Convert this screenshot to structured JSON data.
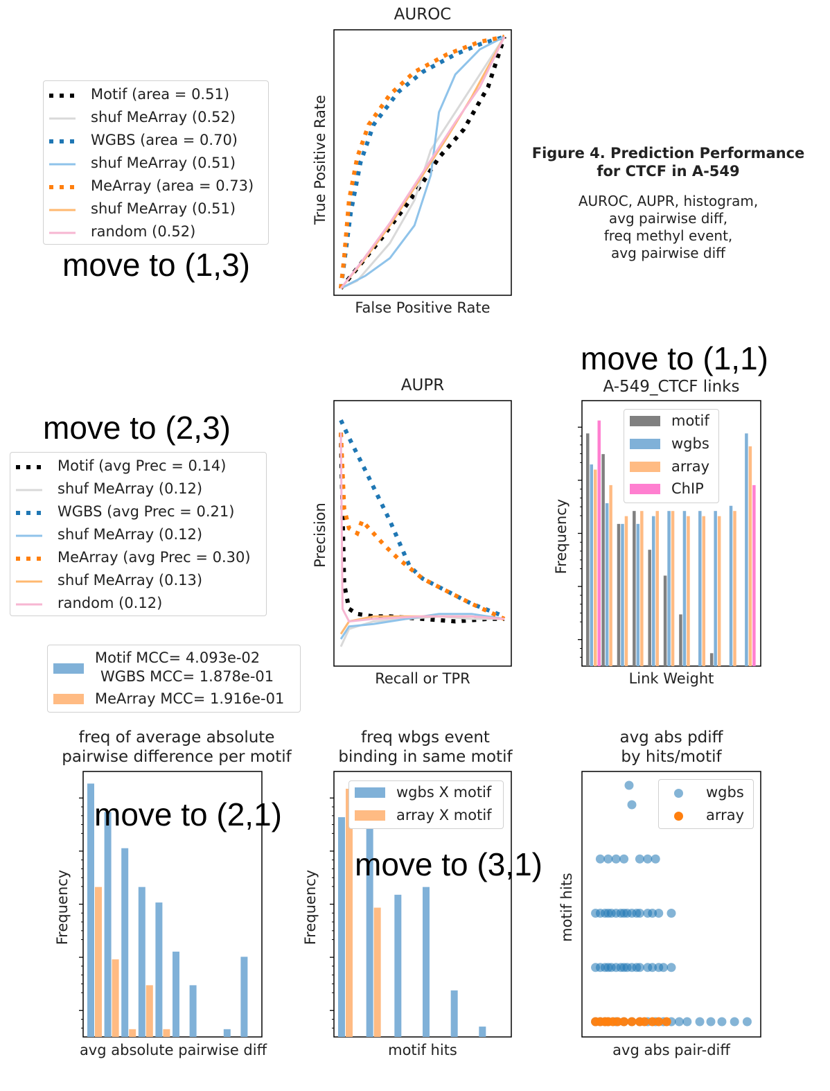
{
  "figure": {
    "title": "Figure 4. Prediction Performance",
    "title2": "for CTCF in A-549",
    "sub_lines": [
      "AUROC, AUPR, histogram,",
      "avg pairwise diff,",
      "freq methyl event,",
      "avg pairwise diff"
    ]
  },
  "notes": {
    "n13": "move to (1,3)",
    "n11": "move to (1,1)",
    "n23": "move to (2,3)",
    "n21": "move to (2,1)",
    "n31": "move to (3,1)"
  },
  "colors": {
    "black": "#000000",
    "blue": "#1f77b4",
    "lightblue": "#8fc3ea",
    "orange": "#ff7f0e",
    "lightorange": "#ffb870",
    "grey": "#d9d9d9",
    "pink": "#f7b6d2",
    "hist_blue": "#80b1d8",
    "hist_orange": "#ffbb83",
    "hist_grey": "#808080",
    "hist_pink": "#ff7fd0"
  },
  "legends": {
    "auroc": [
      "Motif (area = 0.51)",
      "shuf MeArray (0.52)",
      "WGBS (area = 0.70)",
      "shuf MeArray (0.51)",
      "MeArray (area = 0.73)",
      "shuf MeArray (0.51)",
      "random (0.52)"
    ],
    "aupr": [
      "Motif (avg Prec = 0.14)",
      "shuf MeArray (0.12)",
      "WGBS (avg Prec = 0.21)",
      "shuf MeArray (0.12)",
      "MeArray (avg Prec = 0.30)",
      "shuf MeArray (0.13)",
      "random (0.12)"
    ],
    "mcc": [
      "Motif MCC= 4.093e-02",
      "WGBS MCC= 1.878e-01",
      "MeArray MCC= 1.916e-01"
    ]
  },
  "chart_data": [
    {
      "id": "auroc",
      "type": "line",
      "title": "AUROC",
      "xlabel": "False Positive Rate",
      "ylabel": "True Positive Rate",
      "xlim": [
        0,
        1
      ],
      "ylim": [
        0,
        1
      ],
      "series": [
        {
          "name": "Motif (area = 0.51)",
          "color": "#000000",
          "dash": "dotted",
          "x": [
            0,
            0.1,
            0.25,
            0.4,
            0.5,
            0.6,
            0.75,
            0.9,
            1
          ],
          "y": [
            0,
            0.08,
            0.2,
            0.33,
            0.42,
            0.52,
            0.63,
            0.8,
            1
          ]
        },
        {
          "name": "shuf MeArray (0.52)",
          "color": "#d9d9d9",
          "dash": "solid",
          "x": [
            0,
            0.1,
            0.3,
            0.45,
            0.55,
            0.7,
            0.85,
            1
          ],
          "y": [
            0,
            0.03,
            0.18,
            0.35,
            0.55,
            0.7,
            0.85,
            1
          ]
        },
        {
          "name": "WGBS (area = 0.70)",
          "color": "#1f77b4",
          "dash": "dotted",
          "x": [
            0,
            0.02,
            0.06,
            0.12,
            0.2,
            0.35,
            0.5,
            0.7,
            0.85,
            1
          ],
          "y": [
            0,
            0.1,
            0.3,
            0.5,
            0.65,
            0.78,
            0.86,
            0.93,
            0.97,
            1
          ]
        },
        {
          "name": "shuf MeArray (0.51)",
          "color": "#8fc3ea",
          "dash": "solid",
          "x": [
            0,
            0.15,
            0.3,
            0.45,
            0.55,
            0.6,
            0.7,
            0.85,
            1
          ],
          "y": [
            0,
            0.05,
            0.12,
            0.25,
            0.45,
            0.7,
            0.85,
            0.95,
            1
          ]
        },
        {
          "name": "MeArray (area = 0.73)",
          "color": "#ff7f0e",
          "dash": "dotted",
          "x": [
            0,
            0.02,
            0.05,
            0.1,
            0.17,
            0.3,
            0.45,
            0.65,
            0.85,
            1
          ],
          "y": [
            0,
            0.12,
            0.35,
            0.52,
            0.65,
            0.77,
            0.86,
            0.93,
            0.98,
            1
          ]
        },
        {
          "name": "shuf MeArray (0.51)",
          "color": "#ffb870",
          "dash": "solid",
          "x": [
            0,
            0.15,
            0.3,
            0.5,
            0.65,
            0.8,
            1
          ],
          "y": [
            0,
            0.12,
            0.25,
            0.45,
            0.6,
            0.76,
            1
          ]
        },
        {
          "name": "random (0.52)",
          "color": "#f7b6d2",
          "dash": "solid",
          "x": [
            0,
            0.12,
            0.3,
            0.5,
            0.7,
            0.85,
            1
          ],
          "y": [
            0,
            0.1,
            0.26,
            0.46,
            0.66,
            0.8,
            1
          ]
        }
      ]
    },
    {
      "id": "aupr",
      "type": "line",
      "title": "AUPR",
      "xlabel": "Recall or TPR",
      "ylabel": "Precision",
      "xlim": [
        0,
        1
      ],
      "ylim": [
        0,
        1
      ],
      "series": [
        {
          "name": "Motif (avg Prec = 0.14)",
          "color": "#000000",
          "dash": "dotted",
          "x": [
            0,
            0.02,
            0.05,
            0.1,
            0.2,
            0.3,
            0.5,
            0.7,
            0.9,
            1
          ],
          "y": [
            0.9,
            0.3,
            0.2,
            0.18,
            0.17,
            0.17,
            0.16,
            0.15,
            0.16,
            0.16
          ]
        },
        {
          "name": "shuf MeArray (0.12)",
          "color": "#d9d9d9",
          "dash": "solid",
          "x": [
            0,
            0.05,
            0.2,
            0.4,
            0.6,
            0.8,
            1
          ],
          "y": [
            0.05,
            0.12,
            0.15,
            0.16,
            0.17,
            0.16,
            0.16
          ]
        },
        {
          "name": "WGBS (avg Prec = 0.21)",
          "color": "#1f77b4",
          "dash": "dotted",
          "x": [
            0,
            0.05,
            0.15,
            0.3,
            0.42,
            0.5,
            0.65,
            0.8,
            1
          ],
          "y": [
            0.95,
            0.88,
            0.75,
            0.55,
            0.37,
            0.32,
            0.27,
            0.22,
            0.17
          ]
        },
        {
          "name": "shuf MeArray (0.12)",
          "color": "#8fc3ea",
          "dash": "solid",
          "x": [
            0,
            0.05,
            0.2,
            0.4,
            0.6,
            0.8,
            1
          ],
          "y": [
            0.08,
            0.13,
            0.14,
            0.16,
            0.18,
            0.18,
            0.16
          ]
        },
        {
          "name": "MeArray (avg Prec = 0.30)",
          "color": "#ff7f0e",
          "dash": "dotted",
          "x": [
            0,
            0.02,
            0.05,
            0.1,
            0.13,
            0.2,
            0.27,
            0.35,
            0.5,
            0.65,
            0.8,
            1
          ],
          "y": [
            0.9,
            0.6,
            0.52,
            0.5,
            0.55,
            0.5,
            0.45,
            0.4,
            0.32,
            0.27,
            0.22,
            0.16
          ]
        },
        {
          "name": "shuf MeArray (0.13)",
          "color": "#ffb870",
          "dash": "solid",
          "x": [
            0,
            0.05,
            0.2,
            0.4,
            0.6,
            0.8,
            1
          ],
          "y": [
            0.1,
            0.15,
            0.17,
            0.17,
            0.17,
            0.17,
            0.16
          ]
        },
        {
          "name": "random (0.12)",
          "color": "#f7b6d2",
          "dash": "solid",
          "x": [
            0,
            0.01,
            0.05,
            0.2,
            0.5,
            0.8,
            1
          ],
          "y": [
            0.9,
            0.2,
            0.15,
            0.16,
            0.17,
            0.17,
            0.16
          ]
        }
      ]
    },
    {
      "id": "links",
      "type": "bar",
      "title": "A-549_CTCF links",
      "xlabel": "Link Weight",
      "ylabel": "Frequency",
      "yscale": "log",
      "legend": [
        "motif",
        "wgbs",
        "array",
        "ChIP"
      ],
      "series": [
        {
          "name": "motif",
          "color": "#808080",
          "values": [
            0.9,
            0.82,
            0.55,
            0.6,
            0.45,
            0.35,
            0.2,
            0,
            0.05,
            0,
            0
          ]
        },
        {
          "name": "wgbs",
          "color": "#80b1d8",
          "values": [
            0.78,
            0.63,
            0.55,
            0.55,
            0.58,
            0.6,
            0.6,
            0.6,
            0.6,
            0.62,
            0.9
          ]
        },
        {
          "name": "array",
          "color": "#ffbb83",
          "values": [
            0.76,
            0.7,
            0.58,
            0.6,
            0.6,
            0.6,
            0.58,
            0.58,
            0.58,
            0.6,
            0.85
          ]
        },
        {
          "name": "ChIP",
          "color": "#ff7fd0",
          "values": [
            0.95,
            0,
            0,
            0,
            0,
            0,
            0,
            0,
            0,
            0,
            0.7
          ]
        }
      ]
    },
    {
      "id": "pairdiff",
      "type": "bar",
      "title": "freq of average absolute\npairwise difference per motif",
      "xlabel": "avg absolute pairwise diff",
      "ylabel": "Frequency",
      "yscale": "log",
      "series": [
        {
          "name": "Motif MCC= 4.093e-02",
          "color": "#80b1d8",
          "values": [
            0.98,
            0.87,
            0.73,
            0.58,
            0.52,
            0.33,
            0.2,
            0,
            0.03,
            0.31
          ]
        },
        {
          "name": "MeArray MCC= 1.916e-01",
          "color": "#ffbb83",
          "values": [
            0.58,
            0.3,
            0.03,
            0.2,
            0.03,
            0,
            0,
            0,
            0,
            0
          ]
        }
      ]
    },
    {
      "id": "wgbsfreq",
      "type": "bar",
      "title": "freq wbgs event\nbinding in same motif",
      "xlabel": "motif hits",
      "ylabel": "Frequency",
      "yscale": "log",
      "legend": [
        "wgbs X motif",
        "array X motif"
      ],
      "series": [
        {
          "name": "wgbs X motif",
          "color": "#80b1d8",
          "values": [
            0.85,
            0.9,
            0.55,
            0.58,
            0.18,
            0.04
          ]
        },
        {
          "name": "array X motif",
          "color": "#ffbb83",
          "values": [
            0.96,
            0.5,
            0,
            0,
            0,
            0
          ]
        }
      ]
    },
    {
      "id": "scatter",
      "type": "scatter",
      "title": "avg abs pdiff\nby hits/motif",
      "xlabel": "avg abs pair-diff",
      "ylabel": "motif hits",
      "legend": [
        "wgbs",
        "array"
      ],
      "series": [
        {
          "name": "wgbs",
          "color": "#1f77b4",
          "rows": [
            {
              "y": 5,
              "x": [
                0.25,
                0.5
              ]
            },
            {
              "y": 4,
              "x": [
                0.05,
                0.1,
                0.15,
                0.2,
                0.3,
                0.35,
                0.4
              ]
            },
            {
              "y": 3,
              "x": [
                0.02,
                0.05,
                0.08,
                0.1,
                0.12,
                0.15,
                0.18,
                0.2,
                0.22,
                0.25,
                0.28,
                0.3,
                0.35,
                0.38,
                0.42,
                0.5
              ]
            },
            {
              "y": 2,
              "x": [
                0.02,
                0.05,
                0.08,
                0.1,
                0.12,
                0.15,
                0.18,
                0.2,
                0.22,
                0.25,
                0.28,
                0.3,
                0.35,
                0.38,
                0.42,
                0.45,
                0.5
              ]
            },
            {
              "y": 1,
              "x": [
                0.02,
                0.05,
                0.08,
                0.1,
                0.15,
                0.2,
                0.25,
                0.3,
                0.35,
                0.4,
                0.45,
                0.5,
                0.55,
                0.6,
                0.68,
                0.75,
                0.82,
                0.9,
                0.98
              ]
            }
          ]
        },
        {
          "name": "array",
          "color": "#ff7f0e",
          "rows": [
            {
              "y": 1,
              "x": [
                0.02,
                0.05,
                0.08,
                0.1,
                0.13,
                0.16,
                0.2,
                0.25,
                0.3,
                0.33,
                0.38,
                0.42,
                0.47
              ]
            }
          ]
        }
      ]
    }
  ]
}
